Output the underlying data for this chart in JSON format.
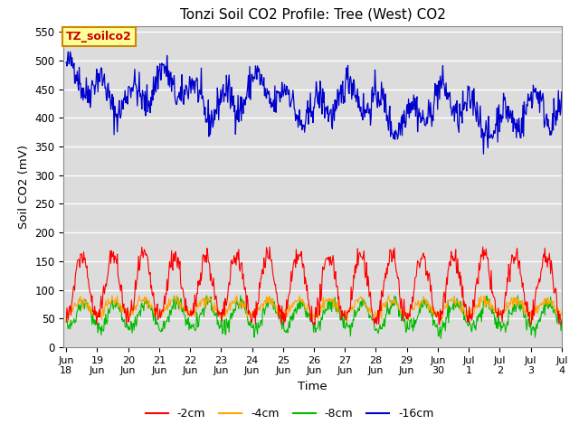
{
  "title": "Tonzi Soil CO2 Profile: Tree (West) CO2",
  "ylabel": "Soil CO2 (mV)",
  "xlabel": "Time",
  "ylim": [
    0,
    560
  ],
  "yticks": [
    0,
    50,
    100,
    150,
    200,
    250,
    300,
    350,
    400,
    450,
    500,
    550
  ],
  "bg_color": "#dcdcdc",
  "line_colors": {
    "-2cm": "#ff0000",
    "-4cm": "#ffa500",
    "-8cm": "#00bb00",
    "-16cm": "#0000cc"
  },
  "legend_box_color": "#ffff99",
  "legend_box_edge": "#cc8800",
  "label_box_text": "TZ_soilco2",
  "label_box_text_color": "#cc0000",
  "xlabels": [
    "Jun\n18",
    "19Jun",
    "20Jun",
    "21Jun",
    "22Jun",
    "23Jun",
    "24Jun",
    "25Jun",
    "26Jun",
    "27Jun",
    "28Jun",
    "29Jun",
    "30",
    "Jul 1",
    "Jul 2",
    "Jul 3",
    "Jul 4"
  ],
  "figsize": [
    6.4,
    4.8
  ],
  "dpi": 100
}
